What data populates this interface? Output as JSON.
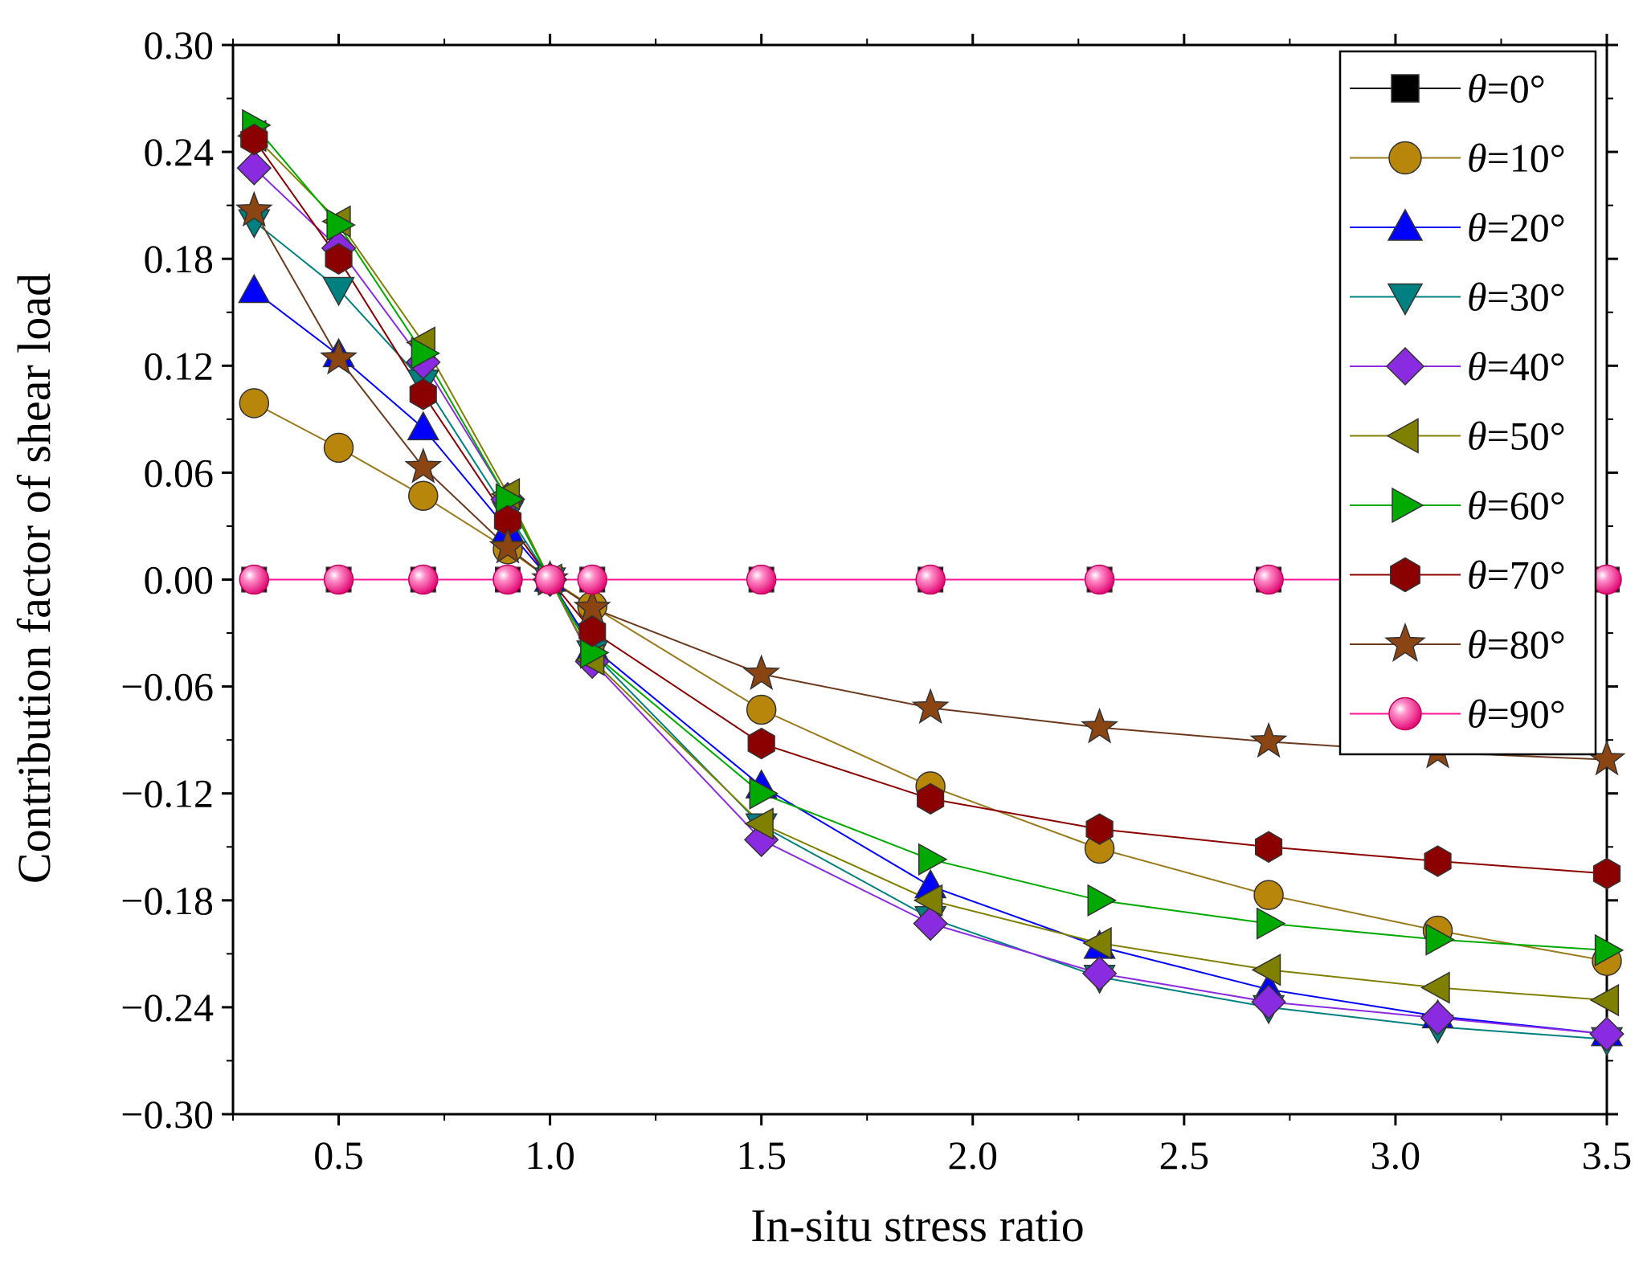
{
  "chart_data": {
    "type": "line",
    "xlabel": "In-situ stress ratio",
    "ylabel": "Contribution factor of shear load",
    "xlim": [
      0.25,
      3.5
    ],
    "ylim": [
      -0.3,
      0.3
    ],
    "xticks": [
      0.5,
      1.0,
      1.5,
      2.0,
      2.5,
      3.0,
      3.5
    ],
    "xtick_labels": [
      "0.5",
      "1.0",
      "1.5",
      "2.0",
      "2.5",
      "3.0",
      "3.5"
    ],
    "yticks": [
      0.3,
      0.24,
      0.18,
      0.12,
      0.06,
      0.0,
      -0.06,
      -0.12,
      -0.18,
      -0.24,
      -0.3
    ],
    "ytick_labels": [
      "0.30",
      "0.24",
      "0.18",
      "0.12",
      "0.06",
      "0.00",
      "−0.06",
      "−0.12",
      "−0.18",
      "−0.24",
      "−0.30"
    ],
    "grid": false,
    "legend_position": "top-right",
    "x": [
      0.3,
      0.5,
      0.7,
      0.9,
      1.0,
      1.1,
      1.5,
      1.9,
      2.3,
      2.7,
      3.1,
      3.5
    ],
    "series": [
      {
        "name": "=0°",
        "marker": "square",
        "color": "#000000",
        "line_color": "#000000",
        "values": [
          0,
          0,
          0,
          0,
          0,
          0,
          0,
          0,
          0,
          0,
          0,
          0
        ]
      },
      {
        "name": "=10°",
        "marker": "circle",
        "color": "#B8860B",
        "line_color": "#9A7B1C",
        "values": [
          0.099,
          0.074,
          0.047,
          0.017,
          0.0,
          -0.015,
          -0.073,
          -0.116,
          -0.151,
          -0.177,
          -0.197,
          -0.214
        ]
      },
      {
        "name": "=20°",
        "marker": "triangle-up",
        "color": "#0000FF",
        "line_color": "#0000FF",
        "values": [
          0.162,
          0.126,
          0.085,
          0.028,
          0.0,
          -0.038,
          -0.116,
          -0.172,
          -0.206,
          -0.23,
          -0.245,
          -0.255
        ]
      },
      {
        "name": "=30°",
        "marker": "triangle-down",
        "color": "#008080",
        "line_color": "#008080",
        "values": [
          0.201,
          0.163,
          0.111,
          0.037,
          0.0,
          -0.041,
          -0.138,
          -0.19,
          -0.223,
          -0.24,
          -0.251,
          -0.258
        ]
      },
      {
        "name": "=40°",
        "marker": "diamond",
        "color": "#8A2BE2",
        "line_color": "#8A2BE2",
        "values": [
          0.231,
          0.186,
          0.122,
          0.045,
          0.0,
          -0.046,
          -0.146,
          -0.193,
          -0.221,
          -0.237,
          -0.246,
          -0.255
        ]
      },
      {
        "name": "=50°",
        "marker": "triangle-left",
        "color": "#808000",
        "line_color": "#808000",
        "values": [
          0.249,
          0.201,
          0.133,
          0.048,
          0.0,
          -0.045,
          -0.137,
          -0.18,
          -0.204,
          -0.219,
          -0.229,
          -0.236
        ]
      },
      {
        "name": "=60°",
        "marker": "triangle-right",
        "color": "#00AA00",
        "line_color": "#00AA00",
        "values": [
          0.255,
          0.199,
          0.127,
          0.045,
          0.0,
          -0.041,
          -0.12,
          -0.157,
          -0.18,
          -0.193,
          -0.202,
          -0.208
        ]
      },
      {
        "name": "=70°",
        "marker": "hexagon",
        "color": "#8B0000",
        "line_color": "#8B0000",
        "values": [
          0.247,
          0.18,
          0.104,
          0.033,
          0.0,
          -0.029,
          -0.092,
          -0.123,
          -0.14,
          -0.15,
          -0.158,
          -0.165
        ]
      },
      {
        "name": "=80°",
        "marker": "star",
        "color": "#8B4513",
        "line_color": "#6B3A1E",
        "values": [
          0.207,
          0.124,
          0.063,
          0.018,
          0.0,
          -0.016,
          -0.053,
          -0.072,
          -0.083,
          -0.091,
          -0.097,
          -0.101
        ]
      },
      {
        "name": "=90°",
        "marker": "sphere",
        "color": "#FF1493",
        "line_color": "#FF1493",
        "values": [
          0,
          0,
          0,
          0,
          0,
          0,
          0,
          0,
          0,
          0,
          0,
          0
        ]
      }
    ]
  }
}
